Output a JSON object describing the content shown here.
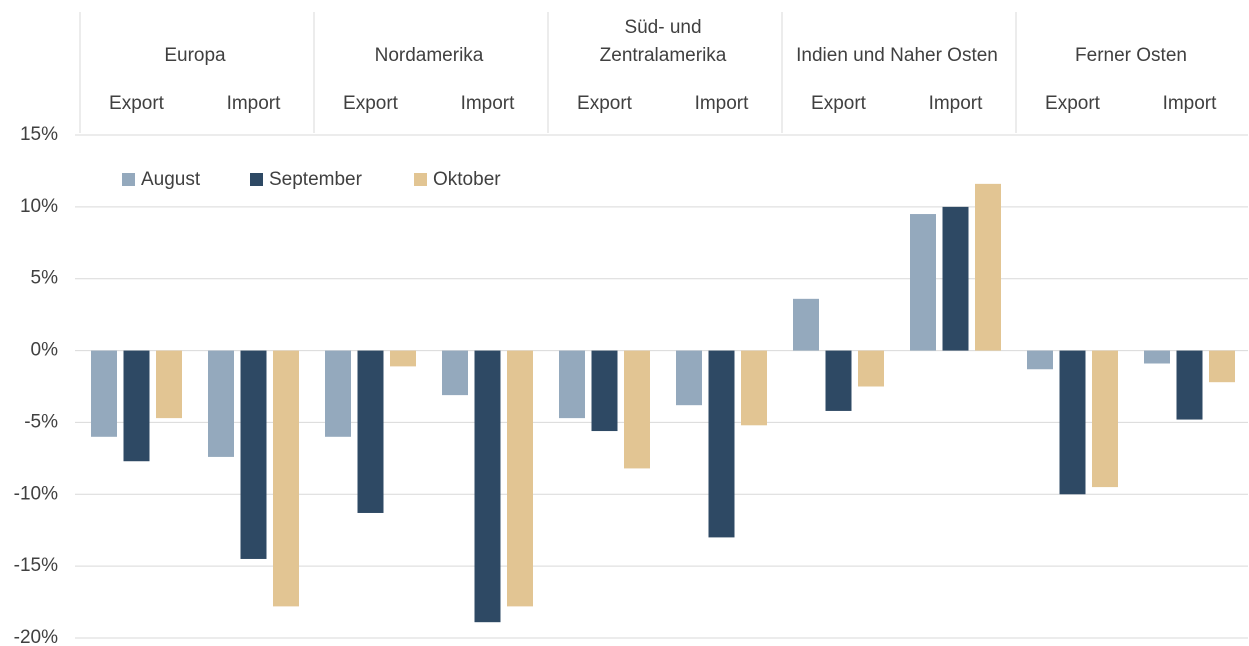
{
  "chart_data": {
    "type": "bar",
    "groups": [
      "Europa",
      "Nordamerika",
      "Süd- und\nZentralamerika",
      "Indien und Naher Osten",
      "Ferner Osten"
    ],
    "categories": [
      "Export",
      "Import",
      "Export",
      "Import",
      "Export",
      "Import",
      "Export",
      "Import",
      "Export",
      "Import"
    ],
    "series": [
      {
        "name": "August",
        "color": "#94a9bd",
        "values": [
          -6.0,
          -7.4,
          -6.0,
          -3.1,
          -4.7,
          -3.8,
          3.6,
          9.5,
          -1.3,
          -0.9
        ]
      },
      {
        "name": "September",
        "color": "#2e4964",
        "values": [
          -7.7,
          -14.5,
          -11.3,
          -18.9,
          -5.6,
          -13.0,
          -4.2,
          10.0,
          -10.0,
          -4.8
        ]
      },
      {
        "name": "Oktober",
        "color": "#e2c593",
        "values": [
          -4.7,
          -17.8,
          -1.1,
          -17.8,
          -8.2,
          -5.2,
          -2.5,
          11.6,
          -9.5,
          -2.2
        ]
      }
    ],
    "ylim": [
      -20,
      15
    ],
    "yticks": [
      {
        "value": -20,
        "label": "-20%"
      },
      {
        "value": -15,
        "label": "-15%"
      },
      {
        "value": -10,
        "label": "-10%"
      },
      {
        "value": -5,
        "label": "-5%"
      },
      {
        "value": 0,
        "label": "0%"
      },
      {
        "value": 5,
        "label": "5%"
      },
      {
        "value": 10,
        "label": "10%"
      },
      {
        "value": 15,
        "label": "15%"
      }
    ],
    "grid": true
  }
}
